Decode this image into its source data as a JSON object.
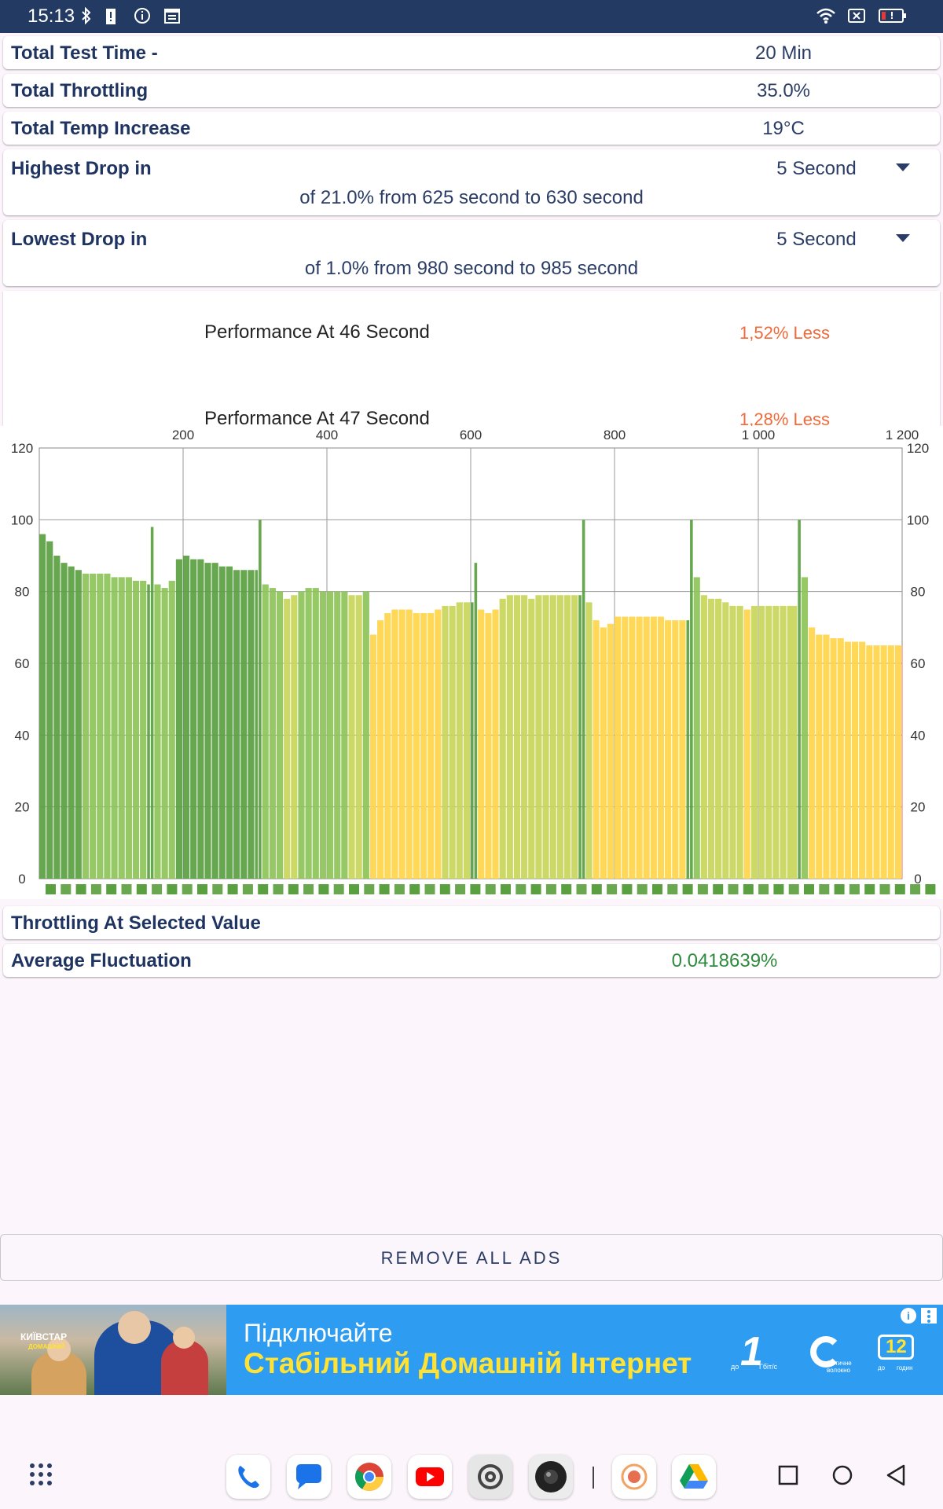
{
  "status": {
    "time": "15:13"
  },
  "rows": {
    "total_test_time": {
      "label": "Total Test Time -",
      "value": "20 Min"
    },
    "total_throttling": {
      "label": "Total Throttling",
      "value": "35.0%"
    },
    "total_temp_increase": {
      "label": "Total Temp Increase",
      "value": "19°C"
    },
    "highest_drop": {
      "label": "Highest Drop in",
      "value": "5 Second",
      "detail": "of 21.0% from 625 second to  630 second"
    },
    "lowest_drop": {
      "label": "Lowest Drop in",
      "value": "5 Second",
      "detail": "of 1.0% from 980 second to  985 second"
    },
    "throttling_selected": {
      "label": "Throttling At Selected Value"
    },
    "average_fluctuation": {
      "label": "Average Fluctuation",
      "value": "0.0418639%"
    }
  },
  "performance_list": [
    {
      "label": "Performance At 46 Second",
      "value": "1,52% Less"
    },
    {
      "label": "Performance At 47 Second",
      "value": "1,28% Less"
    }
  ],
  "remove_ads_label": "REMOVE ALL ADS",
  "ad": {
    "brand": "КИЇВСТАР",
    "brand_sub": "ДОМАШНІЙ",
    "line1": "Підключайте",
    "line2": "Стабільний Домашній Інтернет",
    "badge1_big": "1",
    "badge1_small": "до",
    "badge1_unit": "Гбіт/с",
    "badge2_text": "Оптичне волокно",
    "badge3_big": "12",
    "badge3_small": "до",
    "badge3_unit": "годин"
  },
  "colors": {
    "status_bar": "#233a63",
    "green_dark": "#5aa040",
    "green": "#8dc359",
    "yellow_green": "#c9d65a",
    "yellow": "#ffd54a",
    "accent_orange": "#f06a3a",
    "value_green": "#2e8b3e"
  },
  "chart_data": {
    "type": "bar",
    "top_axis_ticks": [
      "200",
      "400",
      "600",
      "800",
      "1 000",
      "1 200"
    ],
    "y_ticks": [
      "0",
      "20",
      "40",
      "60",
      "80",
      "100",
      "120"
    ],
    "ylim": [
      0,
      120
    ],
    "xlim": [
      0,
      1200
    ],
    "series": [
      {
        "values": [
          [
            0,
            96
          ],
          [
            10,
            94
          ],
          [
            20,
            90
          ],
          [
            30,
            88
          ],
          [
            40,
            87
          ],
          [
            50,
            86
          ],
          [
            60,
            85
          ],
          [
            70,
            85
          ],
          [
            80,
            85
          ],
          [
            90,
            85
          ],
          [
            100,
            84
          ],
          [
            110,
            84
          ],
          [
            120,
            84
          ],
          [
            130,
            83
          ],
          [
            140,
            83
          ],
          [
            150,
            82
          ],
          [
            155,
            98
          ],
          [
            160,
            82
          ],
          [
            170,
            81
          ],
          [
            180,
            83
          ],
          [
            190,
            89
          ],
          [
            200,
            90
          ],
          [
            210,
            89
          ],
          [
            220,
            89
          ],
          [
            230,
            88
          ],
          [
            240,
            88
          ],
          [
            250,
            87
          ],
          [
            260,
            87
          ],
          [
            270,
            86
          ],
          [
            280,
            86
          ],
          [
            290,
            86
          ],
          [
            300,
            86
          ],
          [
            305,
            100
          ],
          [
            310,
            82
          ],
          [
            320,
            81
          ],
          [
            330,
            80
          ],
          [
            340,
            78
          ],
          [
            350,
            79
          ],
          [
            360,
            80
          ],
          [
            370,
            81
          ],
          [
            380,
            81
          ],
          [
            390,
            80
          ],
          [
            400,
            80
          ],
          [
            410,
            80
          ],
          [
            420,
            80
          ],
          [
            430,
            79
          ],
          [
            440,
            79
          ],
          [
            450,
            80
          ],
          [
            460,
            68
          ],
          [
            470,
            72
          ],
          [
            480,
            74
          ],
          [
            490,
            75
          ],
          [
            500,
            75
          ],
          [
            510,
            75
          ],
          [
            520,
            74
          ],
          [
            530,
            74
          ],
          [
            540,
            74
          ],
          [
            550,
            75
          ],
          [
            560,
            76
          ],
          [
            570,
            76
          ],
          [
            580,
            77
          ],
          [
            590,
            77
          ],
          [
            600,
            77
          ],
          [
            605,
            88
          ],
          [
            610,
            75
          ],
          [
            620,
            74
          ],
          [
            630,
            75
          ],
          [
            640,
            78
          ],
          [
            650,
            79
          ],
          [
            660,
            79
          ],
          [
            670,
            79
          ],
          [
            680,
            78
          ],
          [
            690,
            79
          ],
          [
            700,
            79
          ],
          [
            710,
            79
          ],
          [
            720,
            79
          ],
          [
            730,
            79
          ],
          [
            740,
            79
          ],
          [
            750,
            79
          ],
          [
            755,
            100
          ],
          [
            760,
            77
          ],
          [
            770,
            72
          ],
          [
            780,
            70
          ],
          [
            790,
            71
          ],
          [
            800,
            73
          ],
          [
            810,
            73
          ],
          [
            820,
            73
          ],
          [
            830,
            73
          ],
          [
            840,
            73
          ],
          [
            850,
            73
          ],
          [
            860,
            73
          ],
          [
            870,
            72
          ],
          [
            880,
            72
          ],
          [
            890,
            72
          ],
          [
            900,
            72
          ],
          [
            905,
            100
          ],
          [
            910,
            84
          ],
          [
            920,
            79
          ],
          [
            930,
            78
          ],
          [
            940,
            78
          ],
          [
            950,
            77
          ],
          [
            960,
            76
          ],
          [
            970,
            76
          ],
          [
            980,
            75
          ],
          [
            990,
            76
          ],
          [
            1000,
            76
          ],
          [
            1010,
            76
          ],
          [
            1020,
            76
          ],
          [
            1030,
            76
          ],
          [
            1040,
            76
          ],
          [
            1055,
            100
          ],
          [
            1060,
            84
          ],
          [
            1070,
            70
          ],
          [
            1080,
            68
          ],
          [
            1090,
            68
          ],
          [
            1100,
            67
          ],
          [
            1110,
            67
          ],
          [
            1120,
            66
          ],
          [
            1130,
            66
          ],
          [
            1140,
            66
          ],
          [
            1150,
            65
          ],
          [
            1160,
            65
          ],
          [
            1170,
            65
          ],
          [
            1180,
            65
          ],
          [
            1190,
            65
          ]
        ]
      }
    ],
    "grid": true
  }
}
